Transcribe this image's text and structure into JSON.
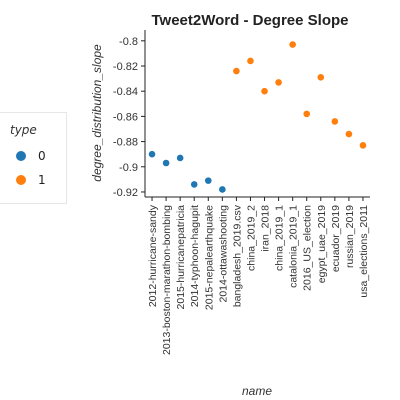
{
  "chart_data": {
    "type": "scatter",
    "title": "Tweet2Word - Degree Slope",
    "xlabel": "name",
    "ylabel": "degree_distribution_slope",
    "legend_title": "type",
    "legend_placement": "left",
    "grid": false,
    "ylim": [
      -0.924,
      -0.793
    ],
    "yticks": [
      "-0.8",
      "-0.82",
      "-0.84",
      "-0.86",
      "-0.88",
      "-0.9",
      "-0.92"
    ],
    "categories": [
      "2012-hurricane-sandy",
      "2013-boston-marathon-bombing",
      "2015-hurricanepatricia",
      "2014-typhoon-hagupit",
      "2015-nepalearthquake",
      "2014-ottawashooting",
      "bangladesh_2019.csv",
      "china_2019_2",
      "iran_2018",
      "china_2019_1",
      "catalonia_2019_1",
      "2016_US_election",
      "egypt_uae_2019",
      "ecuador_2019",
      "russian_2019",
      "usa_elections_2011"
    ],
    "series": [
      {
        "name": "0",
        "color": "#1f77b4",
        "x": [
          "2012-hurricane-sandy",
          "2013-boston-marathon-bombing",
          "2015-hurricanepatricia",
          "2014-typhoon-hagupit",
          "2015-nepalearthquake",
          "2014-ottawashooting"
        ],
        "values": [
          -0.89,
          -0.897,
          -0.893,
          -0.914,
          -0.911,
          -0.918
        ]
      },
      {
        "name": "1",
        "color": "#ff7f0e",
        "x": [
          "bangladesh_2019.csv",
          "china_2019_2",
          "iran_2018",
          "china_2019_1",
          "catalonia_2019_1",
          "2016_US_election",
          "egypt_uae_2019",
          "ecuador_2019",
          "russian_2019",
          "usa_elections_2011"
        ],
        "values": [
          -0.824,
          -0.816,
          -0.84,
          -0.833,
          -0.803,
          -0.858,
          -0.829,
          -0.864,
          -0.874,
          -0.883
        ]
      }
    ]
  }
}
